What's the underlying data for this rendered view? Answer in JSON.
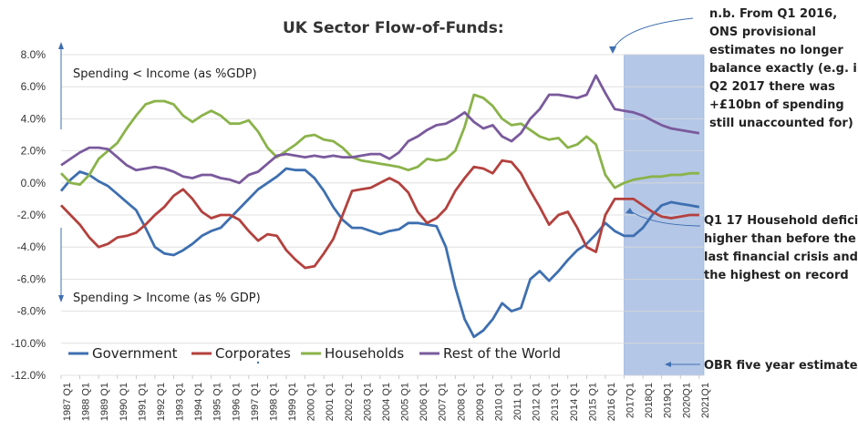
{
  "chart_data": {
    "type": "line",
    "title": "UK Sector Flow-of-Funds:",
    "ylim": [
      -12,
      8
    ],
    "y_ticks": [
      "8.0%",
      "6.0%",
      "4.0%",
      "2.0%",
      "0.0%",
      "-2.0%",
      "-4.0%",
      "-6.0%",
      "-8.0%",
      "-10.0%",
      "-12.0%"
    ],
    "x_start": 1987,
    "x_end": 2021.25,
    "x_ticks": [
      "1987 Q1",
      "1988 Q1",
      "1989 Q1",
      "1990 Q1",
      "1991 Q1",
      "1992 Q1",
      "1993 Q1",
      "1994 Q1",
      "1995 Q1",
      "1996 Q1",
      "1997 Q1",
      "1998 Q1",
      "1999 Q1",
      "2000 Q1",
      "2001 Q1",
      "2002 Q1",
      "2003 Q1",
      "2004 Q1",
      "2005 Q1",
      "2006 Q1",
      "2007 Q1",
      "2008 Q1",
      "2009 Q1",
      "2010 Q1",
      "2011 Q1",
      "2012 Q1",
      "2013 Q1",
      "2014 Q1",
      "2015 Q1",
      "2016 Q1",
      "2017Q1",
      "2018Q1",
      "2019Q1",
      "2020Q1",
      "2021Q1"
    ],
    "shaded_region": {
      "from": 2017.0,
      "to": 2021.25,
      "label": "OBR five year estimates"
    },
    "series": [
      {
        "name": "Government",
        "color": "#3e6fb0",
        "points": [
          [
            1987.0,
            -0.5
          ],
          [
            1987.5,
            0.2
          ],
          [
            1988.0,
            0.7
          ],
          [
            1988.5,
            0.5
          ],
          [
            1989.0,
            0.1
          ],
          [
            1989.5,
            -0.2
          ],
          [
            1990.0,
            -0.7
          ],
          [
            1990.5,
            -1.2
          ],
          [
            1991.0,
            -1.7
          ],
          [
            1991.5,
            -2.8
          ],
          [
            1992.0,
            -4.0
          ],
          [
            1992.5,
            -4.4
          ],
          [
            1993.0,
            -4.5
          ],
          [
            1993.5,
            -4.2
          ],
          [
            1994.0,
            -3.8
          ],
          [
            1994.5,
            -3.3
          ],
          [
            1995.0,
            -3.0
          ],
          [
            1995.5,
            -2.8
          ],
          [
            1996.0,
            -2.2
          ],
          [
            1996.5,
            -1.6
          ],
          [
            1997.0,
            -1.0
          ],
          [
            1997.5,
            -0.4
          ],
          [
            1998.0,
            0.0
          ],
          [
            1998.5,
            0.4
          ],
          [
            1999.0,
            0.9
          ],
          [
            1999.5,
            0.8
          ],
          [
            2000.0,
            0.8
          ],
          [
            2000.5,
            0.3
          ],
          [
            2001.0,
            -0.5
          ],
          [
            2001.5,
            -1.5
          ],
          [
            2002.0,
            -2.3
          ],
          [
            2002.5,
            -2.8
          ],
          [
            2003.0,
            -2.8
          ],
          [
            2003.5,
            -3.0
          ],
          [
            2004.0,
            -3.2
          ],
          [
            2004.5,
            -3.0
          ],
          [
            2005.0,
            -2.9
          ],
          [
            2005.5,
            -2.5
          ],
          [
            2006.0,
            -2.5
          ],
          [
            2006.5,
            -2.6
          ],
          [
            2007.0,
            -2.7
          ],
          [
            2007.5,
            -4.0
          ],
          [
            2008.0,
            -6.5
          ],
          [
            2008.5,
            -8.5
          ],
          [
            2009.0,
            -9.6
          ],
          [
            2009.5,
            -9.2
          ],
          [
            2010.0,
            -8.5
          ],
          [
            2010.5,
            -7.5
          ],
          [
            2011.0,
            -8.0
          ],
          [
            2011.5,
            -7.8
          ],
          [
            2012.0,
            -6.0
          ],
          [
            2012.5,
            -5.5
          ],
          [
            2013.0,
            -6.1
          ],
          [
            2013.5,
            -5.5
          ],
          [
            2014.0,
            -4.8
          ],
          [
            2014.5,
            -4.2
          ],
          [
            2015.0,
            -3.8
          ],
          [
            2015.5,
            -3.2
          ],
          [
            2016.0,
            -2.5
          ],
          [
            2016.5,
            -3.0
          ],
          [
            2017.0,
            -3.3
          ],
          [
            2017.5,
            -3.3
          ],
          [
            2018.0,
            -2.8
          ],
          [
            2018.5,
            -2.0
          ],
          [
            2019.0,
            -1.4
          ],
          [
            2019.5,
            -1.2
          ],
          [
            2020.0,
            -1.3
          ],
          [
            2020.5,
            -1.4
          ],
          [
            2021.0,
            -1.5
          ]
        ]
      },
      {
        "name": "Corporates",
        "color": "#b3413e",
        "points": [
          [
            1987.0,
            -1.4
          ],
          [
            1987.5,
            -2.0
          ],
          [
            1988.0,
            -2.6
          ],
          [
            1988.5,
            -3.4
          ],
          [
            1989.0,
            -4.0
          ],
          [
            1989.5,
            -3.8
          ],
          [
            1990.0,
            -3.4
          ],
          [
            1990.5,
            -3.3
          ],
          [
            1991.0,
            -3.1
          ],
          [
            1991.5,
            -2.6
          ],
          [
            1992.0,
            -2.0
          ],
          [
            1992.5,
            -1.5
          ],
          [
            1993.0,
            -0.8
          ],
          [
            1993.5,
            -0.4
          ],
          [
            1994.0,
            -1.0
          ],
          [
            1994.5,
            -1.8
          ],
          [
            1995.0,
            -2.2
          ],
          [
            1995.5,
            -2.0
          ],
          [
            1996.0,
            -2.0
          ],
          [
            1996.5,
            -2.3
          ],
          [
            1997.0,
            -3.0
          ],
          [
            1997.5,
            -3.6
          ],
          [
            1998.0,
            -3.2
          ],
          [
            1998.5,
            -3.3
          ],
          [
            1999.0,
            -4.2
          ],
          [
            1999.5,
            -4.8
          ],
          [
            2000.0,
            -5.3
          ],
          [
            2000.5,
            -5.2
          ],
          [
            2001.0,
            -4.4
          ],
          [
            2001.5,
            -3.5
          ],
          [
            2002.0,
            -2.0
          ],
          [
            2002.5,
            -0.5
          ],
          [
            2003.0,
            -0.4
          ],
          [
            2003.5,
            -0.3
          ],
          [
            2004.0,
            0.0
          ],
          [
            2004.5,
            0.3
          ],
          [
            2005.0,
            0.0
          ],
          [
            2005.5,
            -0.6
          ],
          [
            2006.0,
            -1.8
          ],
          [
            2006.5,
            -2.5
          ],
          [
            2007.0,
            -2.2
          ],
          [
            2007.5,
            -1.6
          ],
          [
            2008.0,
            -0.5
          ],
          [
            2008.5,
            0.3
          ],
          [
            2009.0,
            1.0
          ],
          [
            2009.5,
            0.9
          ],
          [
            2010.0,
            0.6
          ],
          [
            2010.5,
            1.4
          ],
          [
            2011.0,
            1.3
          ],
          [
            2011.5,
            0.6
          ],
          [
            2012.0,
            -0.5
          ],
          [
            2012.5,
            -1.5
          ],
          [
            2013.0,
            -2.6
          ],
          [
            2013.5,
            -2.0
          ],
          [
            2014.0,
            -1.8
          ],
          [
            2014.5,
            -2.8
          ],
          [
            2015.0,
            -4.0
          ],
          [
            2015.5,
            -4.3
          ],
          [
            2016.0,
            -2.0
          ],
          [
            2016.5,
            -1.0
          ],
          [
            2017.0,
            -1.0
          ],
          [
            2017.5,
            -1.0
          ],
          [
            2018.0,
            -1.4
          ],
          [
            2018.5,
            -1.8
          ],
          [
            2019.0,
            -2.1
          ],
          [
            2019.5,
            -2.2
          ],
          [
            2020.0,
            -2.1
          ],
          [
            2020.5,
            -2.0
          ],
          [
            2021.0,
            -2.0
          ]
        ]
      },
      {
        "name": "Households",
        "color": "#8ab34a",
        "points": [
          [
            1987.0,
            0.6
          ],
          [
            1987.5,
            0.0
          ],
          [
            1988.0,
            -0.1
          ],
          [
            1988.5,
            0.5
          ],
          [
            1989.0,
            1.5
          ],
          [
            1989.5,
            2.0
          ],
          [
            1990.0,
            2.5
          ],
          [
            1990.5,
            3.4
          ],
          [
            1991.0,
            4.2
          ],
          [
            1991.5,
            4.9
          ],
          [
            1992.0,
            5.1
          ],
          [
            1992.5,
            5.1
          ],
          [
            1993.0,
            4.9
          ],
          [
            1993.5,
            4.2
          ],
          [
            1994.0,
            3.8
          ],
          [
            1994.5,
            4.2
          ],
          [
            1995.0,
            4.5
          ],
          [
            1995.5,
            4.2
          ],
          [
            1996.0,
            3.7
          ],
          [
            1996.5,
            3.7
          ],
          [
            1997.0,
            3.9
          ],
          [
            1997.5,
            3.2
          ],
          [
            1998.0,
            2.2
          ],
          [
            1998.5,
            1.6
          ],
          [
            1999.0,
            2.0
          ],
          [
            1999.5,
            2.4
          ],
          [
            2000.0,
            2.9
          ],
          [
            2000.5,
            3.0
          ],
          [
            2001.0,
            2.7
          ],
          [
            2001.5,
            2.6
          ],
          [
            2002.0,
            2.2
          ],
          [
            2002.5,
            1.6
          ],
          [
            2003.0,
            1.4
          ],
          [
            2003.5,
            1.3
          ],
          [
            2004.0,
            1.2
          ],
          [
            2004.5,
            1.1
          ],
          [
            2005.0,
            1.0
          ],
          [
            2005.5,
            0.8
          ],
          [
            2006.0,
            1.0
          ],
          [
            2006.5,
            1.5
          ],
          [
            2007.0,
            1.4
          ],
          [
            2007.5,
            1.5
          ],
          [
            2008.0,
            2.0
          ],
          [
            2008.5,
            3.5
          ],
          [
            2009.0,
            5.5
          ],
          [
            2009.5,
            5.3
          ],
          [
            2010.0,
            4.8
          ],
          [
            2010.5,
            4.0
          ],
          [
            2011.0,
            3.6
          ],
          [
            2011.5,
            3.7
          ],
          [
            2012.0,
            3.3
          ],
          [
            2012.5,
            2.9
          ],
          [
            2013.0,
            2.7
          ],
          [
            2013.5,
            2.8
          ],
          [
            2014.0,
            2.2
          ],
          [
            2014.5,
            2.4
          ],
          [
            2015.0,
            2.9
          ],
          [
            2015.5,
            2.4
          ],
          [
            2016.0,
            0.5
          ],
          [
            2016.5,
            -0.3
          ],
          [
            2017.0,
            0.0
          ],
          [
            2017.5,
            0.2
          ],
          [
            2018.0,
            0.3
          ],
          [
            2018.5,
            0.4
          ],
          [
            2019.0,
            0.4
          ],
          [
            2019.5,
            0.5
          ],
          [
            2020.0,
            0.5
          ],
          [
            2020.5,
            0.6
          ],
          [
            2021.0,
            0.6
          ]
        ]
      },
      {
        "name": "Rest of the World",
        "color": "#7a5a9c",
        "points": [
          [
            1987.0,
            1.1
          ],
          [
            1987.5,
            1.5
          ],
          [
            1988.0,
            1.9
          ],
          [
            1988.5,
            2.2
          ],
          [
            1989.0,
            2.2
          ],
          [
            1989.5,
            2.1
          ],
          [
            1990.0,
            1.6
          ],
          [
            1990.5,
            1.1
          ],
          [
            1991.0,
            0.8
          ],
          [
            1991.5,
            0.9
          ],
          [
            1992.0,
            1.0
          ],
          [
            1992.5,
            0.9
          ],
          [
            1993.0,
            0.7
          ],
          [
            1993.5,
            0.4
          ],
          [
            1994.0,
            0.3
          ],
          [
            1994.5,
            0.5
          ],
          [
            1995.0,
            0.5
          ],
          [
            1995.5,
            0.3
          ],
          [
            1996.0,
            0.2
          ],
          [
            1996.5,
            0.0
          ],
          [
            1997.0,
            0.5
          ],
          [
            1997.5,
            0.7
          ],
          [
            1998.0,
            1.2
          ],
          [
            1998.5,
            1.7
          ],
          [
            1999.0,
            1.8
          ],
          [
            1999.5,
            1.7
          ],
          [
            2000.0,
            1.6
          ],
          [
            2000.5,
            1.7
          ],
          [
            2001.0,
            1.6
          ],
          [
            2001.5,
            1.7
          ],
          [
            2002.0,
            1.6
          ],
          [
            2002.5,
            1.6
          ],
          [
            2003.0,
            1.7
          ],
          [
            2003.5,
            1.8
          ],
          [
            2004.0,
            1.8
          ],
          [
            2004.5,
            1.5
          ],
          [
            2005.0,
            1.9
          ],
          [
            2005.5,
            2.6
          ],
          [
            2006.0,
            2.9
          ],
          [
            2006.5,
            3.3
          ],
          [
            2007.0,
            3.6
          ],
          [
            2007.5,
            3.7
          ],
          [
            2008.0,
            4.0
          ],
          [
            2008.5,
            4.4
          ],
          [
            2009.0,
            3.8
          ],
          [
            2009.5,
            3.4
          ],
          [
            2010.0,
            3.6
          ],
          [
            2010.5,
            2.9
          ],
          [
            2011.0,
            2.6
          ],
          [
            2011.5,
            3.1
          ],
          [
            2012.0,
            4.0
          ],
          [
            2012.5,
            4.6
          ],
          [
            2013.0,
            5.5
          ],
          [
            2013.5,
            5.5
          ],
          [
            2014.0,
            5.4
          ],
          [
            2014.5,
            5.3
          ],
          [
            2015.0,
            5.5
          ],
          [
            2015.5,
            6.7
          ],
          [
            2016.0,
            5.6
          ],
          [
            2016.5,
            4.6
          ],
          [
            2017.0,
            4.5
          ],
          [
            2017.5,
            4.4
          ],
          [
            2018.0,
            4.2
          ],
          [
            2018.5,
            3.9
          ],
          [
            2019.0,
            3.6
          ],
          [
            2019.5,
            3.4
          ],
          [
            2020.0,
            3.3
          ],
          [
            2020.5,
            3.2
          ],
          [
            2021.0,
            3.1
          ]
        ]
      }
    ]
  },
  "annotations": {
    "spending_less": "Spending < Income (as %GDP)",
    "spending_more": "Spending > Income (as % GDP)",
    "note_lines": [
      "n.b. From Q1 2016,",
      "ONS provisional",
      "estimates no longer",
      "balance exactly (e.g. in",
      "Q2 2017 there was",
      "+£10bn of spending",
      "still unaccounted for)"
    ],
    "household_lines": [
      "Q1 17 Household deficit",
      "higher than before the",
      "last financial crisis and",
      "the highest on record"
    ],
    "obr_label": "OBR five year estimates"
  }
}
